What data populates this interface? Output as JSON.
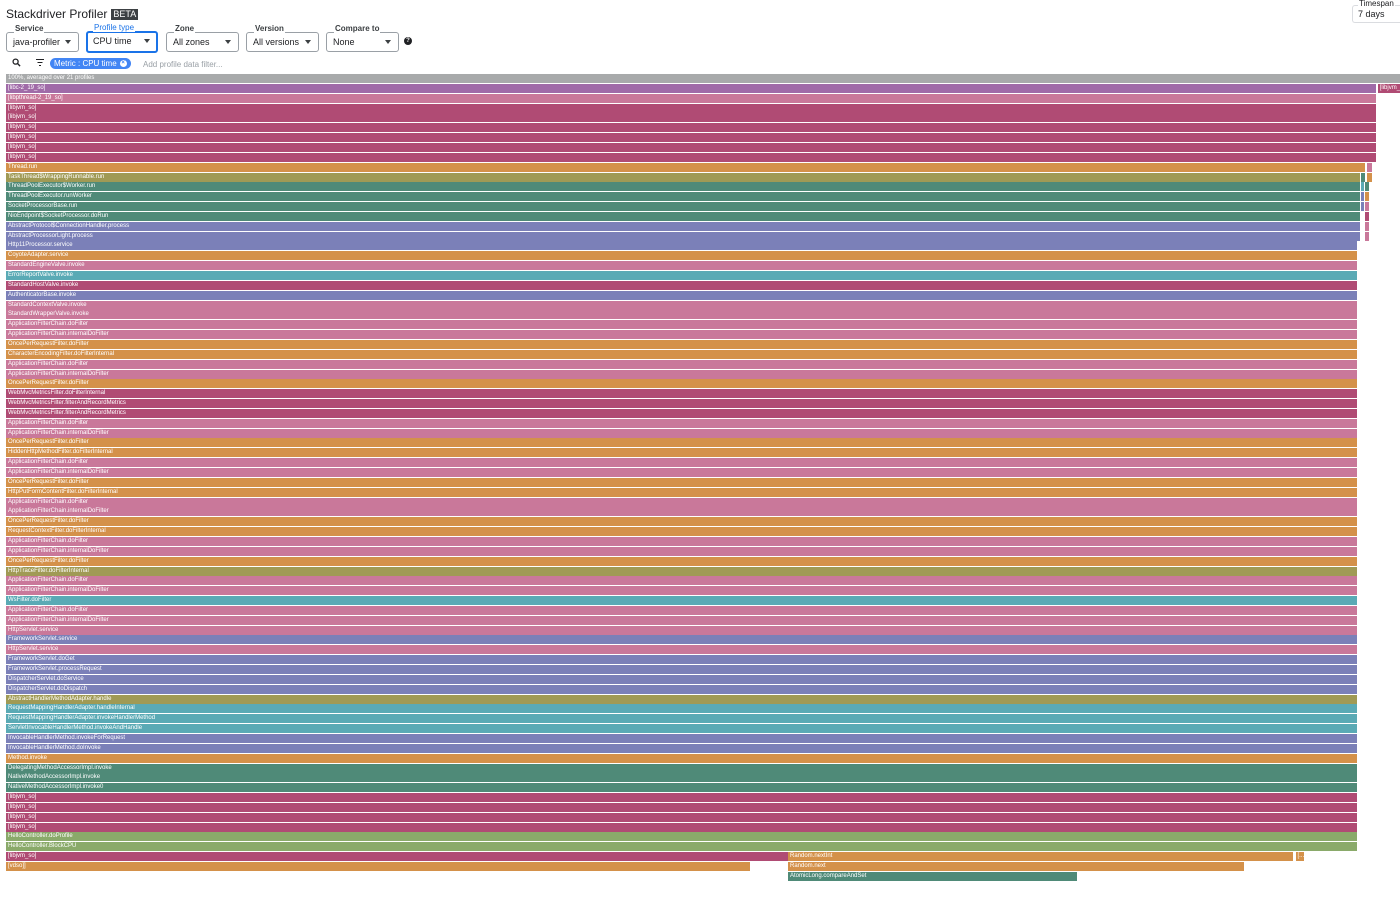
{
  "app": {
    "title": "Stackdriver Profiler",
    "badge": "BETA"
  },
  "filters": [
    {
      "key": "service",
      "label": "Service",
      "value": "java-profiler",
      "active": false
    },
    {
      "key": "profile_type",
      "label": "Profile type",
      "value": "CPU time",
      "active": true
    },
    {
      "key": "zone",
      "label": "Zone",
      "value": "All zones",
      "active": false
    },
    {
      "key": "version",
      "label": "Version",
      "value": "All versions",
      "active": false
    },
    {
      "key": "compare_to",
      "label": "Compare to",
      "value": "None",
      "active": false
    }
  ],
  "timespan": {
    "label": "Timespan",
    "value": "7 days"
  },
  "help_icon": "help-circle-icon",
  "filter_bar": {
    "chip_label": "Metric : CPU time",
    "placeholder": "Add profile data filter...",
    "search_icon": "search-icon",
    "filter_icon": "filter-list-icon"
  },
  "colors": {
    "root": "#a8aaab",
    "purple": "#a06ba8",
    "pink": "#c9789a",
    "crimson": "#b04b74",
    "orange": "#d4914a",
    "olive": "#a09a55",
    "teal": "#4f8a78",
    "blue": "#7b80b8",
    "cyan": "#5aaab5",
    "green": "#8aaa6a"
  },
  "flame": {
    "total_width_fraction": 1.0,
    "rows": [
      [
        {
          "label": "100%, averaged over 21 profiles",
          "color": "root",
          "start": 0.0,
          "width": 1.0
        }
      ],
      [
        {
          "label": "[libc-2_19_so]",
          "color": "purple",
          "start": 0.0,
          "width": 0.983
        },
        {
          "label": "[libjvm_...",
          "color": "crimson",
          "start": 0.984,
          "width": 0.016
        }
      ],
      [
        {
          "label": "[libpthread-2_19_so]",
          "color": "pink",
          "start": 0.0,
          "width": 0.983
        }
      ],
      [
        {
          "label": "[libjvm_so]",
          "color": "crimson",
          "start": 0.0,
          "width": 0.983
        }
      ],
      [
        {
          "label": "[libjvm_so]",
          "color": "crimson",
          "start": 0.0,
          "width": 0.983
        }
      ],
      [
        {
          "label": "[libjvm_so]",
          "color": "crimson",
          "start": 0.0,
          "width": 0.983
        }
      ],
      [
        {
          "label": "[libjvm_so]",
          "color": "crimson",
          "start": 0.0,
          "width": 0.983
        }
      ],
      [
        {
          "label": "[libjvm_so]",
          "color": "crimson",
          "start": 0.0,
          "width": 0.983
        }
      ],
      [
        {
          "label": "[libjvm_so]",
          "color": "crimson",
          "start": 0.0,
          "width": 0.983
        }
      ],
      [
        {
          "label": "Thread.run",
          "color": "orange",
          "start": 0.0,
          "width": 0.975
        },
        {
          "label": "",
          "color": "pink",
          "start": 0.976,
          "width": 0.004
        }
      ],
      [
        {
          "label": "TaskThread$WrappingRunnable.run",
          "color": "olive",
          "start": 0.0,
          "width": 0.971
        },
        {
          "label": "",
          "color": "teal",
          "start": 0.972,
          "width": 0.003
        },
        {
          "label": "",
          "color": "orange",
          "start": 0.976,
          "width": 0.004
        }
      ],
      [
        {
          "label": "ThreadPoolExecutor$Worker.run",
          "color": "teal",
          "start": 0.0,
          "width": 0.971
        },
        {
          "label": "",
          "color": "cyan",
          "start": 0.972,
          "width": 0.002
        },
        {
          "label": "",
          "color": "teal",
          "start": 0.975,
          "width": 0.003
        }
      ],
      [
        {
          "label": "ThreadPoolExecutor.runWorker",
          "color": "teal",
          "start": 0.0,
          "width": 0.971
        },
        {
          "label": "",
          "color": "blue",
          "start": 0.972,
          "width": 0.002
        },
        {
          "label": "",
          "color": "orange",
          "start": 0.975,
          "width": 0.003
        }
      ],
      [
        {
          "label": "SocketProcessorBase.run",
          "color": "teal",
          "start": 0.0,
          "width": 0.971
        },
        {
          "label": "",
          "color": "blue",
          "start": 0.972,
          "width": 0.002
        },
        {
          "label": "",
          "color": "pink",
          "start": 0.975,
          "width": 0.003
        }
      ],
      [
        {
          "label": "NioEndpoint$SocketProcessor.doRun",
          "color": "teal",
          "start": 0.0,
          "width": 0.971
        },
        {
          "label": "",
          "color": "crimson",
          "start": 0.975,
          "width": 0.003
        }
      ],
      [
        {
          "label": "AbstractProtocol$ConnectionHandler.process",
          "color": "blue",
          "start": 0.0,
          "width": 0.971
        },
        {
          "label": "",
          "color": "pink",
          "start": 0.975,
          "width": 0.003
        }
      ],
      [
        {
          "label": "AbstractProcessorLight.process",
          "color": "blue",
          "start": 0.0,
          "width": 0.971
        },
        {
          "label": "",
          "color": "pink",
          "start": 0.975,
          "width": 0.003
        }
      ],
      [
        {
          "label": "Http11Processor.service",
          "color": "blue",
          "start": 0.0,
          "width": 0.969
        }
      ],
      [
        {
          "label": "CoyoteAdapter.service",
          "color": "orange",
          "start": 0.0,
          "width": 0.969
        }
      ],
      [
        {
          "label": "StandardEngineValve.invoke",
          "color": "pink",
          "start": 0.0,
          "width": 0.969
        }
      ],
      [
        {
          "label": "ErrorReportValve.invoke",
          "color": "cyan",
          "start": 0.0,
          "width": 0.969
        }
      ],
      [
        {
          "label": "StandardHostValve.invoke",
          "color": "crimson",
          "start": 0.0,
          "width": 0.969
        }
      ],
      [
        {
          "label": "AuthenticatorBase.invoke",
          "color": "blue",
          "start": 0.0,
          "width": 0.969
        }
      ],
      [
        {
          "label": "StandardContextValve.invoke",
          "color": "pink",
          "start": 0.0,
          "width": 0.969
        }
      ],
      [
        {
          "label": "StandardWrapperValve.invoke",
          "color": "pink",
          "start": 0.0,
          "width": 0.969
        }
      ],
      [
        {
          "label": "ApplicationFilterChain.doFilter",
          "color": "pink",
          "start": 0.0,
          "width": 0.969
        }
      ],
      [
        {
          "label": "ApplicationFilterChain.internalDoFilter",
          "color": "pink",
          "start": 0.0,
          "width": 0.969
        }
      ],
      [
        {
          "label": "OncePerRequestFilter.doFilter",
          "color": "orange",
          "start": 0.0,
          "width": 0.969
        }
      ],
      [
        {
          "label": "CharacterEncodingFilter.doFilterInternal",
          "color": "orange",
          "start": 0.0,
          "width": 0.969
        }
      ],
      [
        {
          "label": "ApplicationFilterChain.doFilter",
          "color": "pink",
          "start": 0.0,
          "width": 0.969
        }
      ],
      [
        {
          "label": "ApplicationFilterChain.internalDoFilter",
          "color": "pink",
          "start": 0.0,
          "width": 0.969
        }
      ],
      [
        {
          "label": "OncePerRequestFilter.doFilter",
          "color": "orange",
          "start": 0.0,
          "width": 0.969
        }
      ],
      [
        {
          "label": "WebMvcMetricsFilter.doFilterInternal",
          "color": "crimson",
          "start": 0.0,
          "width": 0.969
        }
      ],
      [
        {
          "label": "WebMvcMetricsFilter.filterAndRecordMetrics",
          "color": "crimson",
          "start": 0.0,
          "width": 0.969
        }
      ],
      [
        {
          "label": "WebMvcMetricsFilter.filterAndRecordMetrics",
          "color": "crimson",
          "start": 0.0,
          "width": 0.969
        }
      ],
      [
        {
          "label": "ApplicationFilterChain.doFilter",
          "color": "pink",
          "start": 0.0,
          "width": 0.969
        }
      ],
      [
        {
          "label": "ApplicationFilterChain.internalDoFilter",
          "color": "pink",
          "start": 0.0,
          "width": 0.969
        }
      ],
      [
        {
          "label": "OncePerRequestFilter.doFilter",
          "color": "orange",
          "start": 0.0,
          "width": 0.969
        }
      ],
      [
        {
          "label": "HiddenHttpMethodFilter.doFilterInternal",
          "color": "orange",
          "start": 0.0,
          "width": 0.969
        }
      ],
      [
        {
          "label": "ApplicationFilterChain.doFilter",
          "color": "pink",
          "start": 0.0,
          "width": 0.969
        }
      ],
      [
        {
          "label": "ApplicationFilterChain.internalDoFilter",
          "color": "pink",
          "start": 0.0,
          "width": 0.969
        }
      ],
      [
        {
          "label": "OncePerRequestFilter.doFilter",
          "color": "orange",
          "start": 0.0,
          "width": 0.969
        }
      ],
      [
        {
          "label": "HttpPutFormContentFilter.doFilterInternal",
          "color": "orange",
          "start": 0.0,
          "width": 0.969
        }
      ],
      [
        {
          "label": "ApplicationFilterChain.doFilter",
          "color": "pink",
          "start": 0.0,
          "width": 0.969
        }
      ],
      [
        {
          "label": "ApplicationFilterChain.internalDoFilter",
          "color": "pink",
          "start": 0.0,
          "width": 0.969
        }
      ],
      [
        {
          "label": "OncePerRequestFilter.doFilter",
          "color": "orange",
          "start": 0.0,
          "width": 0.969
        }
      ],
      [
        {
          "label": "RequestContextFilter.doFilterInternal",
          "color": "orange",
          "start": 0.0,
          "width": 0.969
        }
      ],
      [
        {
          "label": "ApplicationFilterChain.doFilter",
          "color": "pink",
          "start": 0.0,
          "width": 0.969
        }
      ],
      [
        {
          "label": "ApplicationFilterChain.internalDoFilter",
          "color": "pink",
          "start": 0.0,
          "width": 0.969
        }
      ],
      [
        {
          "label": "OncePerRequestFilter.doFilter",
          "color": "orange",
          "start": 0.0,
          "width": 0.969
        }
      ],
      [
        {
          "label": "HttpTraceFilter.doFilterInternal",
          "color": "olive",
          "start": 0.0,
          "width": 0.969
        }
      ],
      [
        {
          "label": "ApplicationFilterChain.doFilter",
          "color": "pink",
          "start": 0.0,
          "width": 0.969
        }
      ],
      [
        {
          "label": "ApplicationFilterChain.internalDoFilter",
          "color": "pink",
          "start": 0.0,
          "width": 0.969
        }
      ],
      [
        {
          "label": "WsFilter.doFilter",
          "color": "cyan",
          "start": 0.0,
          "width": 0.969
        }
      ],
      [
        {
          "label": "ApplicationFilterChain.doFilter",
          "color": "pink",
          "start": 0.0,
          "width": 0.969
        }
      ],
      [
        {
          "label": "ApplicationFilterChain.internalDoFilter",
          "color": "pink",
          "start": 0.0,
          "width": 0.969
        }
      ],
      [
        {
          "label": "HttpServlet.service",
          "color": "pink",
          "start": 0.0,
          "width": 0.969
        }
      ],
      [
        {
          "label": "FrameworkServlet.service",
          "color": "blue",
          "start": 0.0,
          "width": 0.969
        }
      ],
      [
        {
          "label": "HttpServlet.service",
          "color": "pink",
          "start": 0.0,
          "width": 0.969
        }
      ],
      [
        {
          "label": "FrameworkServlet.doGet",
          "color": "blue",
          "start": 0.0,
          "width": 0.969
        }
      ],
      [
        {
          "label": "FrameworkServlet.processRequest",
          "color": "blue",
          "start": 0.0,
          "width": 0.969
        }
      ],
      [
        {
          "label": "DispatcherServlet.doService",
          "color": "blue",
          "start": 0.0,
          "width": 0.969
        }
      ],
      [
        {
          "label": "DispatcherServlet.doDispatch",
          "color": "blue",
          "start": 0.0,
          "width": 0.969
        }
      ],
      [
        {
          "label": "AbstractHandlerMethodAdapter.handle",
          "color": "olive",
          "start": 0.0,
          "width": 0.969
        }
      ],
      [
        {
          "label": "RequestMappingHandlerAdapter.handleInternal",
          "color": "cyan",
          "start": 0.0,
          "width": 0.969
        }
      ],
      [
        {
          "label": "RequestMappingHandlerAdapter.invokeHandlerMethod",
          "color": "cyan",
          "start": 0.0,
          "width": 0.969
        }
      ],
      [
        {
          "label": "ServletInvocableHandlerMethod.invokeAndHandle",
          "color": "cyan",
          "start": 0.0,
          "width": 0.969
        }
      ],
      [
        {
          "label": "InvocableHandlerMethod.invokeForRequest",
          "color": "blue",
          "start": 0.0,
          "width": 0.969
        }
      ],
      [
        {
          "label": "InvocableHandlerMethod.doInvoke",
          "color": "blue",
          "start": 0.0,
          "width": 0.969
        }
      ],
      [
        {
          "label": "Method.invoke",
          "color": "orange",
          "start": 0.0,
          "width": 0.969
        }
      ],
      [
        {
          "label": "DelegatingMethodAccessorImpl.invoke",
          "color": "teal",
          "start": 0.0,
          "width": 0.969
        }
      ],
      [
        {
          "label": "NativeMethodAccessorImpl.invoke",
          "color": "teal",
          "start": 0.0,
          "width": 0.969
        }
      ],
      [
        {
          "label": "NativeMethodAccessorImpl.invoke0",
          "color": "teal",
          "start": 0.0,
          "width": 0.969
        }
      ],
      [
        {
          "label": "[libjvm_so]",
          "color": "crimson",
          "start": 0.0,
          "width": 0.969
        }
      ],
      [
        {
          "label": "[libjvm_so]",
          "color": "crimson",
          "start": 0.0,
          "width": 0.969
        }
      ],
      [
        {
          "label": "[libjvm_so]",
          "color": "crimson",
          "start": 0.0,
          "width": 0.969
        }
      ],
      [
        {
          "label": "[libjvm_so]",
          "color": "crimson",
          "start": 0.0,
          "width": 0.969
        }
      ],
      [
        {
          "label": "HelloController.doProfile",
          "color": "green",
          "start": 0.0,
          "width": 0.969
        }
      ],
      [
        {
          "label": "HelloController.BlockCPU",
          "color": "green",
          "start": 0.0,
          "width": 0.969
        }
      ],
      [
        {
          "label": "[libjvm_so]",
          "color": "crimson",
          "start": 0.0,
          "width": 0.561
        },
        {
          "label": "Random.nextInt",
          "color": "orange",
          "start": 0.561,
          "width": 0.362
        },
        {
          "label": "[...",
          "color": "orange",
          "start": 0.925,
          "width": 0.006
        }
      ],
      [
        {
          "label": "[vdso]]",
          "color": "orange",
          "start": 0.0,
          "width": 0.534
        },
        {
          "label": "Random.next",
          "color": "orange",
          "start": 0.561,
          "width": 0.327
        }
      ],
      [
        {
          "label": "AtomicLong.compareAndSet",
          "color": "teal",
          "start": 0.561,
          "width": 0.207
        }
      ]
    ]
  }
}
